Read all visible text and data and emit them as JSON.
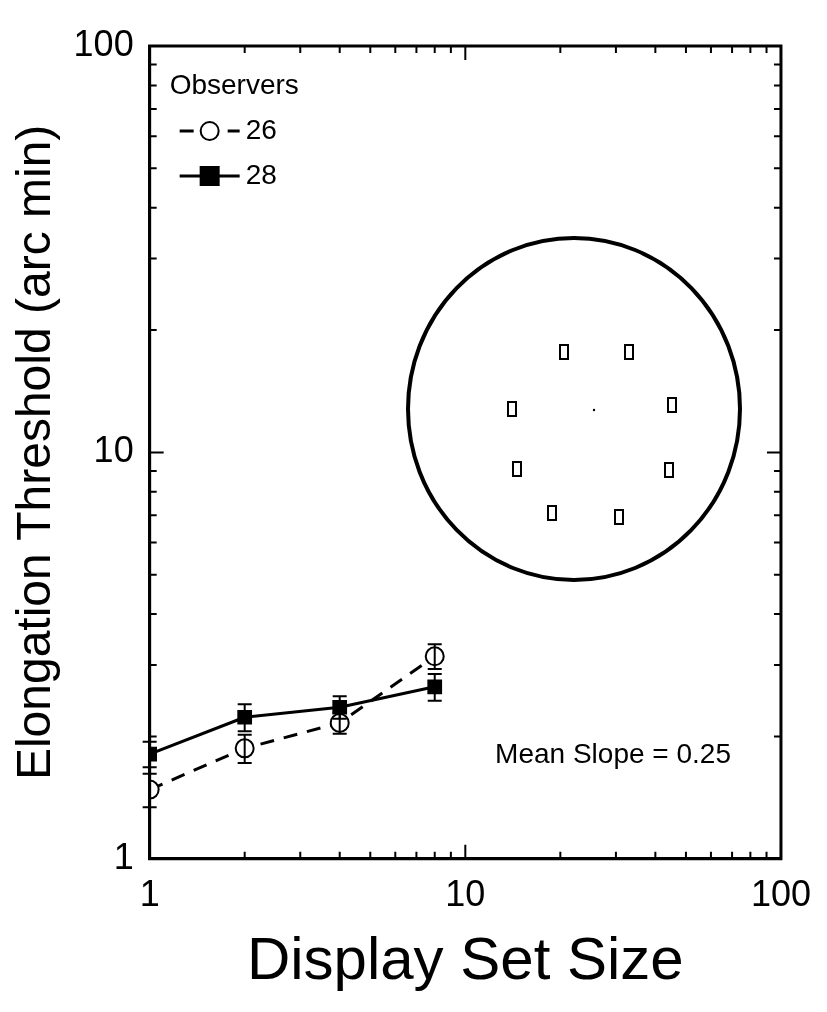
{
  "chart_data": {
    "type": "line",
    "xlabel": "Display Set Size",
    "ylabel": "Elongation Threshold (arc min)",
    "legend_title": "Observers",
    "legend": "top left",
    "log": "xy",
    "x": [
      1,
      2,
      4,
      8
    ],
    "series": [
      {
        "name": "26",
        "color": "#000000",
        "marker": "circle",
        "line_style": "dashed",
        "values": [
          1.48,
          1.87,
          2.16,
          3.15
        ],
        "errors": [
          0.14,
          0.15,
          0.13,
          0.22
        ]
      },
      {
        "name": "28",
        "color": "#000000",
        "marker": "square",
        "line_style": "solid",
        "values": [
          1.81,
          2.23,
          2.36,
          2.65
        ],
        "errors": [
          0.13,
          0.17,
          0.15,
          0.2
        ]
      }
    ],
    "xlim": [
      1,
      100
    ],
    "ylim": [
      1,
      100
    ],
    "xticks": [
      1,
      {
        "value": 2,
        "label": null
      },
      {
        "value": 3,
        "label": null
      },
      {
        "value": 4,
        "label": null
      },
      {
        "value": 5,
        "label": null
      },
      {
        "value": 6,
        "label": null
      },
      {
        "value": 7,
        "label": null
      },
      {
        "value": 8,
        "label": null
      },
      {
        "value": 9,
        "label": null
      },
      10,
      {
        "value": 20,
        "label": null
      },
      {
        "value": 30,
        "label": null
      },
      {
        "value": 40,
        "label": null
      },
      {
        "value": 50,
        "label": null
      },
      {
        "value": 60,
        "label": null
      },
      {
        "value": 70,
        "label": null
      },
      {
        "value": 80,
        "label": null
      },
      {
        "value": 90,
        "label": null
      },
      100
    ],
    "yticks": [
      1,
      {
        "value": 2,
        "label": null
      },
      {
        "value": 3,
        "label": null
      },
      {
        "value": 4,
        "label": null
      },
      {
        "value": 5,
        "label": null
      },
      {
        "value": 6,
        "label": null
      },
      {
        "value": 7,
        "label": null
      },
      {
        "value": 8,
        "label": null
      },
      {
        "value": 9,
        "label": null
      },
      10,
      {
        "value": 20,
        "label": null
      },
      {
        "value": 30,
        "label": null
      },
      {
        "value": 40,
        "label": null
      },
      {
        "value": 50,
        "label": null
      },
      {
        "value": 60,
        "label": null
      },
      {
        "value": 70,
        "label": null
      },
      {
        "value": 80,
        "label": null
      },
      {
        "value": 90,
        "label": null
      },
      100
    ],
    "annotations": [
      "Mean Slope = 0.25"
    ]
  }
}
